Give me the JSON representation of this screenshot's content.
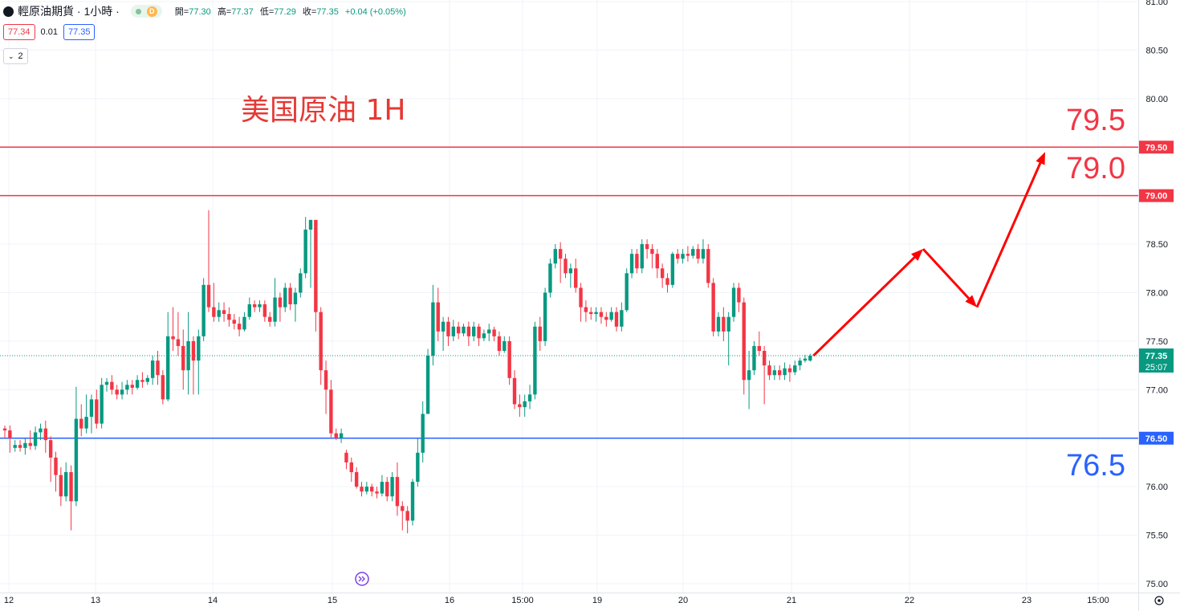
{
  "header": {
    "symbol": "輕原油期貨 · 1小時 ·",
    "status_letter": "D",
    "open_label": "開=",
    "open": "77.30",
    "high_label": "高=",
    "high": "77.37",
    "low_label": "低=",
    "low": "77.29",
    "close_label": "收=",
    "close": "77.35",
    "change": "+0.04 (+0.05%)"
  },
  "quote": {
    "sell": "77.34",
    "spread": "0.01",
    "buy": "77.35"
  },
  "indicator_toggle": "2",
  "chart_data": {
    "type": "candlestick",
    "title": "美国原油 1H",
    "ylim": [
      75.0,
      81.0
    ],
    "y_ticks": [
      "75.00",
      "75.50",
      "76.00",
      "76.50",
      "77.00",
      "77.50",
      "78.00",
      "78.50",
      "79.00",
      "79.50",
      "80.00",
      "80.50",
      "81.00"
    ],
    "x_ticks": [
      "12",
      "13",
      "14",
      "15",
      "16",
      "15:00",
      "19",
      "20",
      "21",
      "22",
      "23",
      "15:00"
    ],
    "current_price": "77.35",
    "countdown": "25:07",
    "candles": [
      [
        76.6,
        76.58,
        76.63,
        76.5
      ],
      [
        76.58,
        76.5,
        76.63,
        76.35
      ],
      [
        76.4,
        76.43,
        76.48,
        76.36
      ],
      [
        76.43,
        76.4,
        76.48,
        76.36
      ],
      [
        76.4,
        76.45,
        76.5,
        76.33
      ],
      [
        76.45,
        76.42,
        76.58,
        76.38
      ],
      [
        76.42,
        76.56,
        76.62,
        76.38
      ],
      [
        76.56,
        76.6,
        76.65,
        76.48
      ],
      [
        76.6,
        76.48,
        76.68,
        76.35
      ],
      [
        76.48,
        76.3,
        76.52,
        76.05
      ],
      [
        76.3,
        76.12,
        76.36,
        75.95
      ],
      [
        76.12,
        75.9,
        76.2,
        75.8
      ],
      [
        75.9,
        76.15,
        76.25,
        75.85
      ],
      [
        76.15,
        75.85,
        76.22,
        75.55
      ],
      [
        75.85,
        76.7,
        77.03,
        75.8
      ],
      [
        76.7,
        76.6,
        76.85,
        76.52
      ],
      [
        76.6,
        76.72,
        76.95,
        76.55
      ],
      [
        76.72,
        76.9,
        76.95,
        76.55
      ],
      [
        76.9,
        76.65,
        77.0,
        76.6
      ],
      [
        76.65,
        77.05,
        77.12,
        76.6
      ],
      [
        77.05,
        77.08,
        77.12,
        76.98
      ],
      [
        77.08,
        77.0,
        77.15,
        76.95
      ],
      [
        77.0,
        76.95,
        77.05,
        76.9
      ],
      [
        76.95,
        77.0,
        77.08,
        76.9
      ],
      [
        77.0,
        77.05,
        77.1,
        76.95
      ],
      [
        77.05,
        77.02,
        77.1,
        76.95
      ],
      [
        77.02,
        77.1,
        77.15,
        77.0
      ],
      [
        77.1,
        77.08,
        77.18,
        77.02
      ],
      [
        77.08,
        77.12,
        77.15,
        77.05
      ],
      [
        77.12,
        77.3,
        77.35,
        77.05
      ],
      [
        77.3,
        77.15,
        77.4,
        77.05
      ],
      [
        77.15,
        76.9,
        77.2,
        76.85
      ],
      [
        76.9,
        77.55,
        77.8,
        76.88
      ],
      [
        77.55,
        77.52,
        77.85,
        77.4
      ],
      [
        77.52,
        77.45,
        77.8,
        77.35
      ],
      [
        77.45,
        77.2,
        77.62,
        77.0
      ],
      [
        77.2,
        77.5,
        77.8,
        76.95
      ],
      [
        77.5,
        77.3,
        77.55,
        76.95
      ],
      [
        77.3,
        77.55,
        77.62,
        76.95
      ],
      [
        77.55,
        78.08,
        78.15,
        77.5
      ],
      [
        78.08,
        77.85,
        78.85,
        77.8
      ],
      [
        77.85,
        77.75,
        78.1,
        77.7
      ],
      [
        77.75,
        77.82,
        77.9,
        77.7
      ],
      [
        77.82,
        77.78,
        77.9,
        77.7
      ],
      [
        77.78,
        77.72,
        77.85,
        77.65
      ],
      [
        77.72,
        77.68,
        77.78,
        77.62
      ],
      [
        77.68,
        77.62,
        77.75,
        77.55
      ],
      [
        77.62,
        77.75,
        77.8,
        77.6
      ],
      [
        77.75,
        77.88,
        77.95,
        77.72
      ],
      [
        77.88,
        77.85,
        77.92,
        77.8
      ],
      [
        77.85,
        77.88,
        77.92,
        77.8
      ],
      [
        77.88,
        77.75,
        77.92,
        77.7
      ],
      [
        77.75,
        77.7,
        77.8,
        77.65
      ],
      [
        77.7,
        77.95,
        78.15,
        77.65
      ],
      [
        77.95,
        77.85,
        78.0,
        77.7
      ],
      [
        77.85,
        78.05,
        78.1,
        77.8
      ],
      [
        78.05,
        77.88,
        78.1,
        77.82
      ],
      [
        77.88,
        78.0,
        78.05,
        77.7
      ],
      [
        78.0,
        78.2,
        78.25,
        77.95
      ],
      [
        78.2,
        78.65,
        78.78,
        78.15
      ],
      [
        78.65,
        78.75,
        78.75,
        78.05
      ],
      [
        78.75,
        77.8,
        78.72,
        77.6
      ],
      [
        77.8,
        77.2,
        77.85,
        77.05
      ],
      [
        77.2,
        77.0,
        77.3,
        76.75
      ],
      [
        77.0,
        76.55,
        77.1,
        76.5
      ],
      [
        76.55,
        76.5,
        76.6,
        76.48
      ],
      [
        76.5,
        76.55,
        76.6,
        76.45
      ],
      [
        76.35,
        76.25,
        76.38,
        76.18
      ],
      [
        76.25,
        76.15,
        76.3,
        76.05
      ],
      [
        76.15,
        76.0,
        76.2,
        75.98
      ],
      [
        76.0,
        75.95,
        76.05,
        75.9
      ],
      [
        75.95,
        76.0,
        76.05,
        75.92
      ],
      [
        76.0,
        75.95,
        76.03,
        75.9
      ],
      [
        75.95,
        75.93,
        76.0,
        75.88
      ],
      [
        75.93,
        76.05,
        76.12,
        75.9
      ],
      [
        76.05,
        75.9,
        76.1,
        75.85
      ],
      [
        75.9,
        76.1,
        76.15,
        75.85
      ],
      [
        76.1,
        75.8,
        76.25,
        75.7
      ],
      [
        75.8,
        75.75,
        75.85,
        75.55
      ],
      [
        75.75,
        75.65,
        75.8,
        75.52
      ],
      [
        75.65,
        76.05,
        76.08,
        75.6
      ],
      [
        76.05,
        76.35,
        76.5,
        76.0
      ],
      [
        76.35,
        76.75,
        76.88,
        76.25
      ],
      [
        76.75,
        77.35,
        77.42,
        76.75
      ],
      [
        77.35,
        77.9,
        78.08,
        77.25
      ],
      [
        77.9,
        77.6,
        78.05,
        77.5
      ],
      [
        77.6,
        77.7,
        77.75,
        77.4
      ],
      [
        77.7,
        77.55,
        77.75,
        77.45
      ],
      [
        77.55,
        77.65,
        77.72,
        77.5
      ],
      [
        77.65,
        77.58,
        77.7,
        77.52
      ],
      [
        77.58,
        77.65,
        77.68,
        77.55
      ],
      [
        77.65,
        77.55,
        77.7,
        77.45
      ],
      [
        77.55,
        77.65,
        77.7,
        77.5
      ],
      [
        77.65,
        77.53,
        77.68,
        77.45
      ],
      [
        77.53,
        77.58,
        77.62,
        77.5
      ],
      [
        77.58,
        77.62,
        77.68,
        77.5
      ],
      [
        77.62,
        77.55,
        77.65,
        77.5
      ],
      [
        77.55,
        77.4,
        77.6,
        77.35
      ],
      [
        77.4,
        77.5,
        77.55,
        77.38
      ],
      [
        77.5,
        77.12,
        77.55,
        77.05
      ],
      [
        77.12,
        76.85,
        77.2,
        76.8
      ],
      [
        76.85,
        76.82,
        76.95,
        76.72
      ],
      [
        76.82,
        76.88,
        76.95,
        76.72
      ],
      [
        76.88,
        76.95,
        77.05,
        76.8
      ],
      [
        76.95,
        77.65,
        77.7,
        76.9
      ],
      [
        77.65,
        77.5,
        77.75,
        77.4
      ],
      [
        77.5,
        78.0,
        78.05,
        77.45
      ],
      [
        78.0,
        78.3,
        78.35,
        77.95
      ],
      [
        78.3,
        78.45,
        78.5,
        78.25
      ],
      [
        78.45,
        78.35,
        78.52,
        78.1
      ],
      [
        78.35,
        78.2,
        78.4,
        78.15
      ],
      [
        78.2,
        78.25,
        78.3,
        78.05
      ],
      [
        78.25,
        78.05,
        78.35,
        78.0
      ],
      [
        78.05,
        77.85,
        78.1,
        77.7
      ],
      [
        77.85,
        77.8,
        77.92,
        77.7
      ],
      [
        77.8,
        77.78,
        77.85,
        77.72
      ],
      [
        77.78,
        77.8,
        77.85,
        77.7
      ],
      [
        77.8,
        77.75,
        77.85,
        77.68
      ],
      [
        77.75,
        77.72,
        77.8,
        77.65
      ],
      [
        77.72,
        77.8,
        77.85,
        77.7
      ],
      [
        77.8,
        77.65,
        77.85,
        77.6
      ],
      [
        77.65,
        77.82,
        77.9,
        77.6
      ],
      [
        77.82,
        78.2,
        78.25,
        77.8
      ],
      [
        78.2,
        78.4,
        78.45,
        78.15
      ],
      [
        78.4,
        78.25,
        78.45,
        78.2
      ],
      [
        78.25,
        78.5,
        78.55,
        78.2
      ],
      [
        78.5,
        78.45,
        78.55,
        78.35
      ],
      [
        78.45,
        78.4,
        78.5,
        78.25
      ],
      [
        78.4,
        78.25,
        78.45,
        78.15
      ],
      [
        78.25,
        78.15,
        78.3,
        78.05
      ],
      [
        78.15,
        78.08,
        78.2,
        78.0
      ],
      [
        78.08,
        78.4,
        78.42,
        78.05
      ],
      [
        78.4,
        78.35,
        78.45,
        78.3
      ],
      [
        78.35,
        78.4,
        78.45,
        78.3
      ],
      [
        78.4,
        78.38,
        78.48,
        78.32
      ],
      [
        78.38,
        78.45,
        78.48,
        78.35
      ],
      [
        78.45,
        78.35,
        78.5,
        78.3
      ],
      [
        78.35,
        78.45,
        78.55,
        78.3
      ],
      [
        78.45,
        78.1,
        78.5,
        78.05
      ],
      [
        78.1,
        77.6,
        78.15,
        77.55
      ],
      [
        77.6,
        77.75,
        77.8,
        77.55
      ],
      [
        77.75,
        77.6,
        77.85,
        77.5
      ],
      [
        77.6,
        77.75,
        77.8,
        77.25
      ],
      [
        77.75,
        78.05,
        78.1,
        77.7
      ],
      [
        78.05,
        77.9,
        78.1,
        77.8
      ],
      [
        77.9,
        77.1,
        77.95,
        76.95
      ],
      [
        77.1,
        77.2,
        77.4,
        76.8
      ],
      [
        77.2,
        77.45,
        77.5,
        77.15
      ],
      [
        77.45,
        77.4,
        77.6,
        77.35
      ],
      [
        77.4,
        77.25,
        77.45,
        76.85
      ],
      [
        77.25,
        77.15,
        77.3,
        77.1
      ],
      [
        77.15,
        77.2,
        77.25,
        77.1
      ],
      [
        77.2,
        77.15,
        77.25,
        77.1
      ],
      [
        77.15,
        77.22,
        77.28,
        77.1
      ],
      [
        77.22,
        77.18,
        77.26,
        77.08
      ],
      [
        77.18,
        77.25,
        77.3,
        77.15
      ],
      [
        77.25,
        77.3,
        77.33,
        77.2
      ],
      [
        77.3,
        77.32,
        77.36,
        77.28
      ],
      [
        77.3,
        77.35,
        77.37,
        77.29
      ]
    ],
    "support_level": 76.5,
    "resistance_levels": [
      79.0,
      79.5
    ],
    "level_tags": [
      "79.50",
      "79.00",
      "76.50"
    ],
    "annotation_labels": [
      "79.5",
      "79.0",
      "76.5"
    ],
    "forecast_path": [
      [
        77.35,
        78.45
      ],
      [
        78.45,
        77.85
      ],
      [
        77.85,
        79.45
      ]
    ],
    "colors": {
      "up": "#089981",
      "down": "#f23645",
      "support": "#2962ff",
      "resistance": "#f23645",
      "arrow": "#ff0000"
    }
  }
}
